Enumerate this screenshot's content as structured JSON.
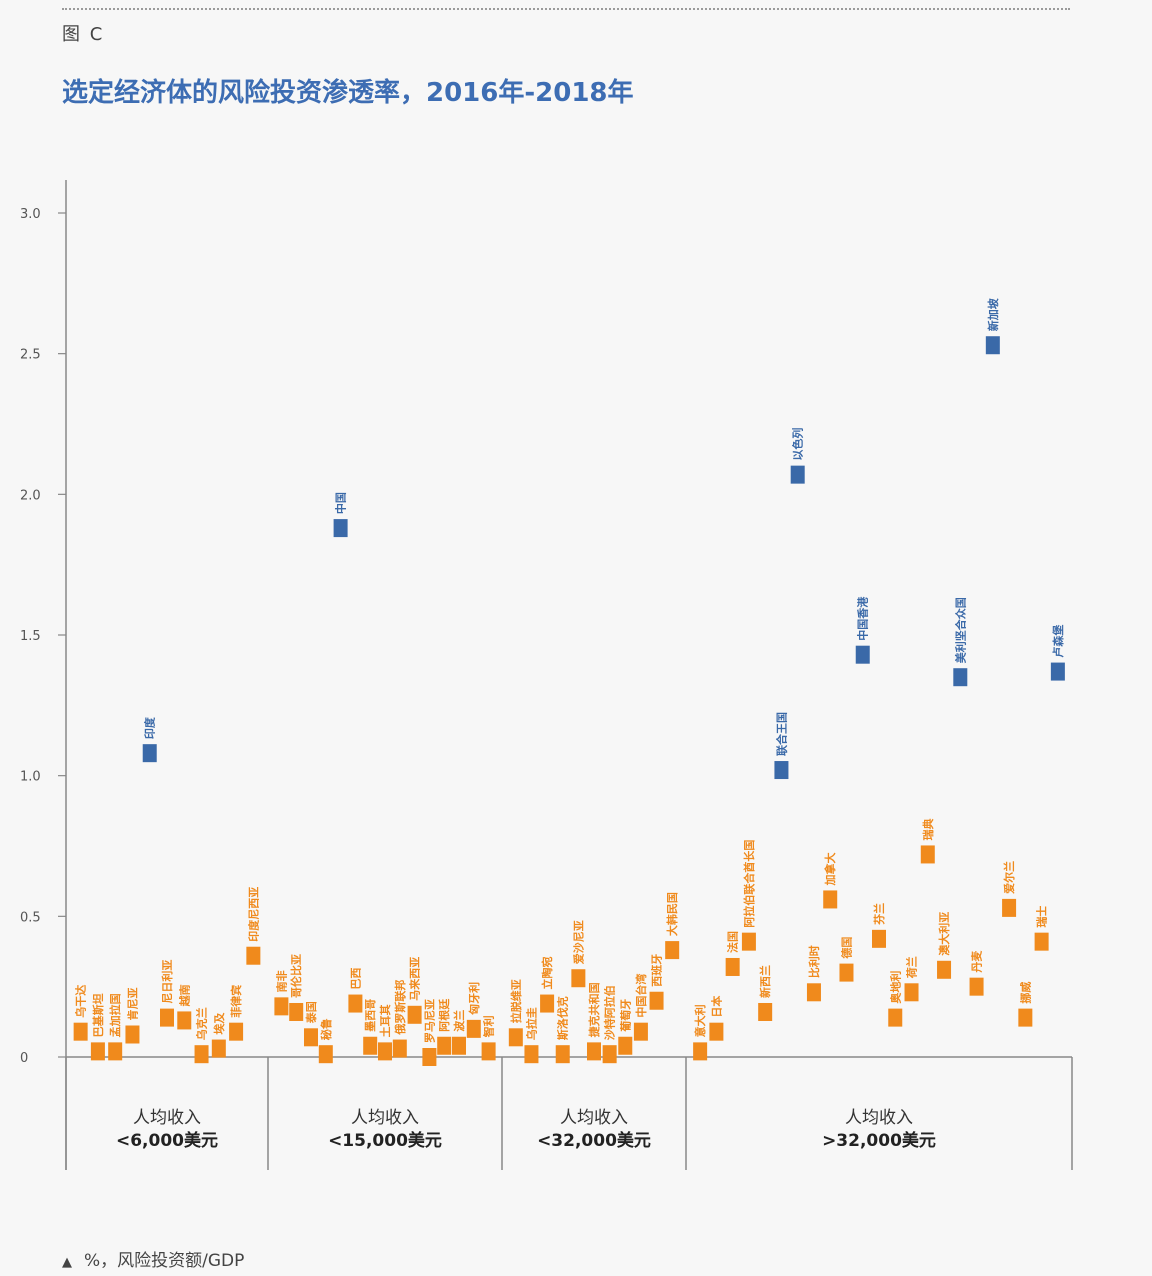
{
  "header": {
    "figure_label": "图 C"
  },
  "footnote": {
    "marker": "▲",
    "text": "%，风险投资额/GDP"
  },
  "colors": {
    "highlight": "#3a69a8",
    "normal": "#f08a1c",
    "title": "#3d6db3"
  },
  "chart_data": {
    "type": "scatter",
    "title": "选定经济体的风险投资渗透率，2016年-2018年",
    "ylabel": "%，风险投资额/GDP",
    "ylim": [
      0,
      3.0
    ],
    "yticks": [
      {
        "value": 0,
        "label": "0"
      },
      {
        "value": 0.5,
        "label": "0.5"
      },
      {
        "value": 1.0,
        "label": "1.0"
      },
      {
        "value": 1.5,
        "label": "1.5"
      },
      {
        "value": 2.0,
        "label": "2.0"
      },
      {
        "value": 2.5,
        "label": "2.5"
      },
      {
        "value": 3.0,
        "label": "3.0"
      }
    ],
    "groups": [
      {
        "line1": "人均收入",
        "line2": "<6,000美元",
        "points": [
          {
            "name": "乌干达",
            "value": 0.09
          },
          {
            "name": "巴基斯坦",
            "value": 0.02
          },
          {
            "name": "孟加拉国",
            "value": 0.02
          },
          {
            "name": "肯尼亚",
            "value": 0.08
          },
          {
            "name": "印度",
            "value": 1.08,
            "highlight": true
          },
          {
            "name": "尼日利亚",
            "value": 0.14
          },
          {
            "name": "越南",
            "value": 0.13
          },
          {
            "name": "乌克兰",
            "value": 0.01
          },
          {
            "name": "埃及",
            "value": 0.03
          },
          {
            "name": "菲律宾",
            "value": 0.09
          },
          {
            "name": "印度尼西亚",
            "value": 0.36
          }
        ]
      },
      {
        "line1": "人均收入",
        "line2": "<15,000美元",
        "points": [
          {
            "name": "南非",
            "value": 0.18
          },
          {
            "name": "哥伦比亚",
            "value": 0.16
          },
          {
            "name": "泰国",
            "value": 0.07
          },
          {
            "name": "秘鲁",
            "value": 0.01
          },
          {
            "name": "中国",
            "value": 1.88,
            "highlight": true
          },
          {
            "name": "巴西",
            "value": 0.19
          },
          {
            "name": "墨西哥",
            "value": 0.04
          },
          {
            "name": "土耳其",
            "value": 0.02
          },
          {
            "name": "俄罗斯联邦",
            "value": 0.03
          },
          {
            "name": "马来西亚",
            "value": 0.15
          },
          {
            "name": "罗马尼亚",
            "value": 0.0
          },
          {
            "name": "阿根廷",
            "value": 0.04
          },
          {
            "name": "波兰",
            "value": 0.04
          },
          {
            "name": "匈牙利",
            "value": 0.1
          },
          {
            "name": "智利",
            "value": 0.02
          }
        ]
      },
      {
        "line1": "人均收入",
        "line2": "<32,000美元",
        "points": [
          {
            "name": "拉脱维亚",
            "value": 0.07
          },
          {
            "name": "乌拉圭",
            "value": 0.01
          },
          {
            "name": "立陶宛",
            "value": 0.19
          },
          {
            "name": "斯洛伐克",
            "value": 0.01
          },
          {
            "name": "爱沙尼亚",
            "value": 0.28
          },
          {
            "name": "捷克共和国",
            "value": 0.02
          },
          {
            "name": "沙特阿拉伯",
            "value": 0.01
          },
          {
            "name": "葡萄牙",
            "value": 0.04
          },
          {
            "name": "中国台湾",
            "value": 0.09
          },
          {
            "name": "西班牙",
            "value": 0.2
          },
          {
            "name": "大韩民国",
            "value": 0.38
          }
        ]
      },
      {
        "line1": "人均收入",
        "line2": ">32,000美元",
        "points": [
          {
            "name": "意大利",
            "value": 0.02
          },
          {
            "name": "日本",
            "value": 0.09
          },
          {
            "name": "法国",
            "value": 0.32
          },
          {
            "name": "阿拉伯联合酋长国",
            "value": 0.41
          },
          {
            "name": "新西兰",
            "value": 0.16
          },
          {
            "name": "联合王国",
            "value": 1.02,
            "highlight": true
          },
          {
            "name": "以色列",
            "value": 2.07,
            "highlight": true
          },
          {
            "name": "比利时",
            "value": 0.23
          },
          {
            "name": "加拿大",
            "value": 0.56
          },
          {
            "name": "德国",
            "value": 0.3
          },
          {
            "name": "中国香港",
            "value": 1.43,
            "highlight": true
          },
          {
            "name": "芬兰",
            "value": 0.42
          },
          {
            "name": "奥地利",
            "value": 0.14
          },
          {
            "name": "荷兰",
            "value": 0.23
          },
          {
            "name": "瑞典",
            "value": 0.72
          },
          {
            "name": "澳大利亚",
            "value": 0.31
          },
          {
            "name": "美利坚合众国",
            "value": 1.35,
            "highlight": true
          },
          {
            "name": "丹麦",
            "value": 0.25
          },
          {
            "name": "新加坡",
            "value": 2.53,
            "highlight": true
          },
          {
            "name": "爱尔兰",
            "value": 0.53
          },
          {
            "name": "挪威",
            "value": 0.14
          },
          {
            "name": "瑞士",
            "value": 0.41
          },
          {
            "name": "卢森堡",
            "value": 1.37,
            "highlight": true
          }
        ]
      }
    ]
  }
}
